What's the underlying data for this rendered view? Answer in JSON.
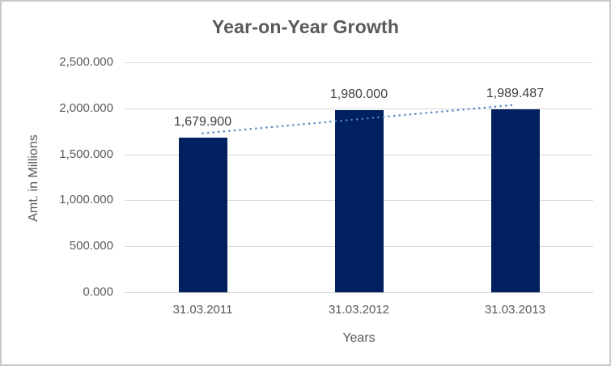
{
  "chart_data": {
    "type": "bar",
    "title": "Year-on-Year Growth",
    "xlabel": "Years",
    "ylabel": "Amt. in Millions",
    "categories": [
      "31.03.2011",
      "31.03.2012",
      "31.03.2013"
    ],
    "values": [
      1679.9,
      1980.0,
      1989.487
    ],
    "value_labels": [
      "1,679.900",
      "1,980.000",
      "1,989.487"
    ],
    "y_tick_labels": [
      "0.000",
      "500.000",
      "1,000.000",
      "1,500.000",
      "2,000.000",
      "2,500.000"
    ],
    "ylim": [
      0,
      2500
    ],
    "grid": "horizontal",
    "legend": "none",
    "trendline": {
      "type": "linear",
      "style": "dotted"
    },
    "colors": {
      "bar": "#002060",
      "trendline": "#4e86c6",
      "gridline": "#d9d9d9",
      "axis_line": "#d0d0d0",
      "title_text": "#595959",
      "tick_text": "#595959",
      "value_label_text": "#404040"
    }
  }
}
